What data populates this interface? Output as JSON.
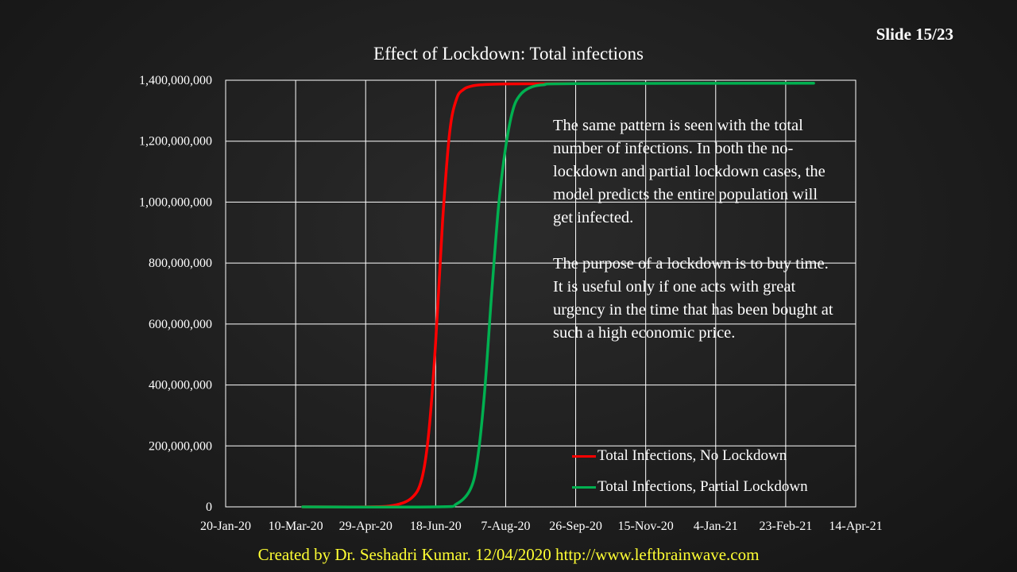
{
  "slide": {
    "number_label": "Slide 15/23"
  },
  "footer": {
    "credit": "Created by Dr. Seshadri Kumar. 12/04/2020 http://www.leftbrainwave.com"
  },
  "annotation": {
    "para1": "The same pattern is seen with the total number of infections. In both the no-lockdown and partial lockdown cases, the model predicts the entire population will get infected.",
    "para2": "The purpose of a lockdown is to buy time. It is useful only if one acts with great urgency in the time that has been bought at such a high economic price."
  },
  "colors": {
    "no_lockdown": "#ff0000",
    "partial_lockdown": "#00b050",
    "footer": "#ffff33",
    "grid": "#ffffff"
  },
  "chart_data": {
    "type": "line",
    "title": "Effect of Lockdown: Total infections",
    "xlabel": "",
    "ylabel": "",
    "x_ticks": [
      "20-Jan-20",
      "10-Mar-20",
      "29-Apr-20",
      "18-Jun-20",
      "7-Aug-20",
      "26-Sep-20",
      "15-Nov-20",
      "4-Jan-21",
      "23-Feb-21",
      "14-Apr-21"
    ],
    "y_ticks": [
      "0",
      "200,000,000",
      "400,000,000",
      "600,000,000",
      "800,000,000",
      "1,000,000,000",
      "1,200,000,000",
      "1,400,000,000"
    ],
    "xlim": [
      "2020-01-20",
      "2021-04-14"
    ],
    "ylim": [
      0,
      1400000000
    ],
    "grid": true,
    "legend_position": "bottom-right",
    "series": [
      {
        "name": "Total Infections, No Lockdown",
        "color": "#ff0000",
        "x": [
          "2020-03-15",
          "2020-04-29",
          "2020-05-19",
          "2020-06-01",
          "2020-06-08",
          "2020-06-13",
          "2020-06-18",
          "2020-06-23",
          "2020-06-28",
          "2020-07-03",
          "2020-07-08",
          "2020-07-13",
          "2020-07-20",
          "2020-08-07",
          "2020-09-26"
        ],
        "y": [
          0,
          0,
          5000000,
          30000000,
          90000000,
          240000000,
          540000000,
          940000000,
          1230000000,
          1340000000,
          1370000000,
          1380000000,
          1385000000,
          1388000000,
          1389000000
        ]
      },
      {
        "name": "Total Infections, Partial Lockdown",
        "color": "#00b050",
        "x": [
          "2020-03-15",
          "2020-06-18",
          "2020-07-03",
          "2020-07-13",
          "2020-07-18",
          "2020-07-23",
          "2020-07-28",
          "2020-08-02",
          "2020-08-07",
          "2020-08-12",
          "2020-08-17",
          "2020-08-24",
          "2020-09-03",
          "2020-09-26",
          "2021-03-15"
        ],
        "y": [
          0,
          0,
          10000000,
          60000000,
          160000000,
          380000000,
          700000000,
          990000000,
          1180000000,
          1300000000,
          1350000000,
          1375000000,
          1385000000,
          1389000000,
          1390000000
        ]
      }
    ]
  }
}
